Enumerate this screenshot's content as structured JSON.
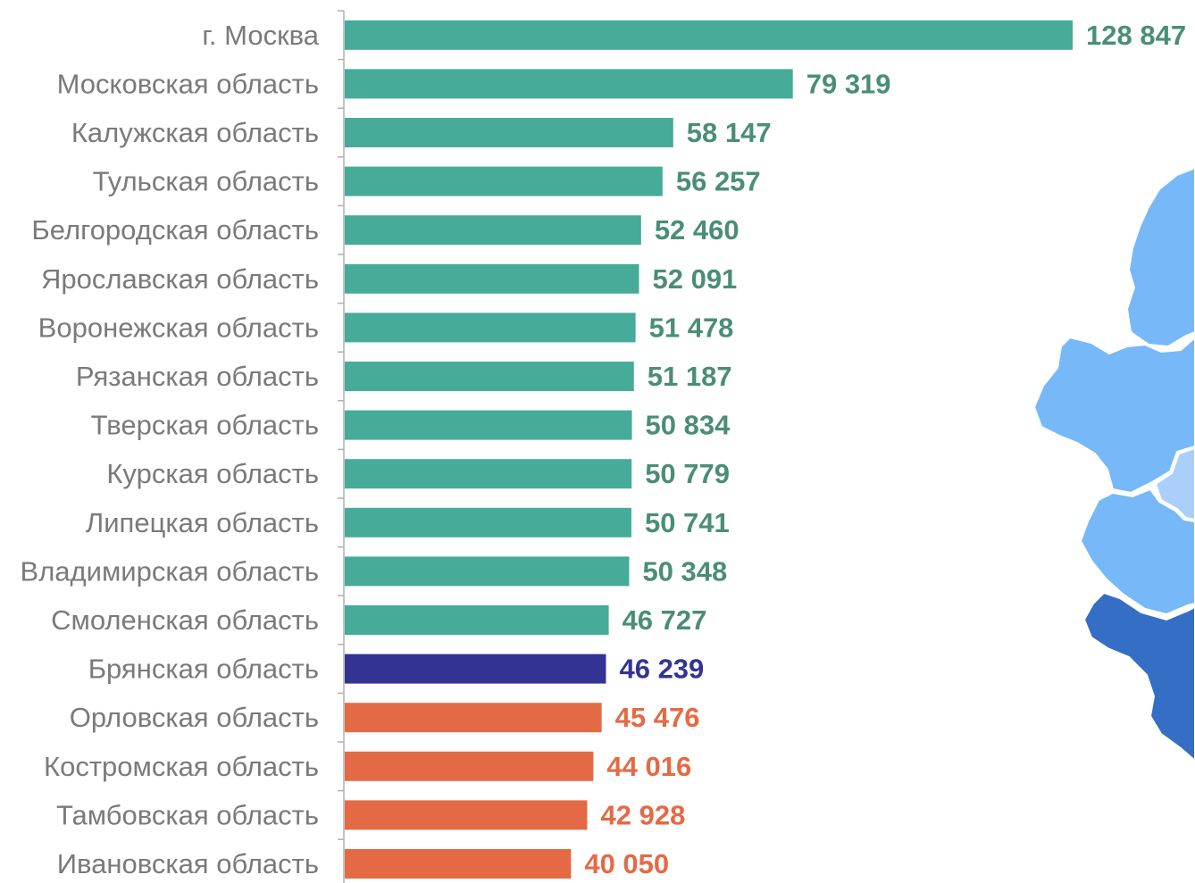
{
  "chart_data": {
    "type": "bar",
    "orientation": "horizontal",
    "categories": [
      "г. Москва",
      "Московская область",
      "Калужская область",
      "Тульская область",
      "Белгородская область",
      "Ярославская область",
      "Воронежская область",
      "Рязанская область",
      "Тверская область",
      "Курская область",
      "Липецкая область",
      "Владимирская область",
      "Смоленская область",
      "Брянская область",
      "Орловская область",
      "Костромская область",
      "Тамбовская область",
      "Ивановская область"
    ],
    "values": [
      128847,
      79319,
      58147,
      56257,
      52460,
      52091,
      51478,
      51187,
      50834,
      50779,
      50741,
      50348,
      46727,
      46239,
      45476,
      44016,
      42928,
      40050
    ],
    "value_labels": [
      "128 847",
      "79 319",
      "58 147",
      "56 257",
      "52 460",
      "52 091",
      "51 478",
      "51 187",
      "50 834",
      "50 779",
      "50 741",
      "50 348",
      "46 727",
      "46 239",
      "45 476",
      "44 016",
      "42 928",
      "40 050"
    ],
    "bar_groups": [
      "above",
      "above",
      "above",
      "above",
      "above",
      "above",
      "above",
      "above",
      "above",
      "above",
      "above",
      "above",
      "above",
      "highlight",
      "below",
      "below",
      "below",
      "below"
    ],
    "group_colors": {
      "above": {
        "bar": "#46ab98",
        "label": "#4a8d78"
      },
      "highlight": {
        "bar": "#333394",
        "label": "#333394"
      },
      "below": {
        "bar": "#e46a45",
        "label": "#e46a45"
      }
    },
    "xlim": [
      0,
      128847
    ],
    "title": "",
    "xlabel": "",
    "ylabel": "",
    "grid": false,
    "legend": "none"
  },
  "map": {
    "colors": {
      "light": "#76b8f8",
      "pale": "#a9cffa",
      "dark": "#346ec5",
      "border": "#ffffff"
    }
  }
}
